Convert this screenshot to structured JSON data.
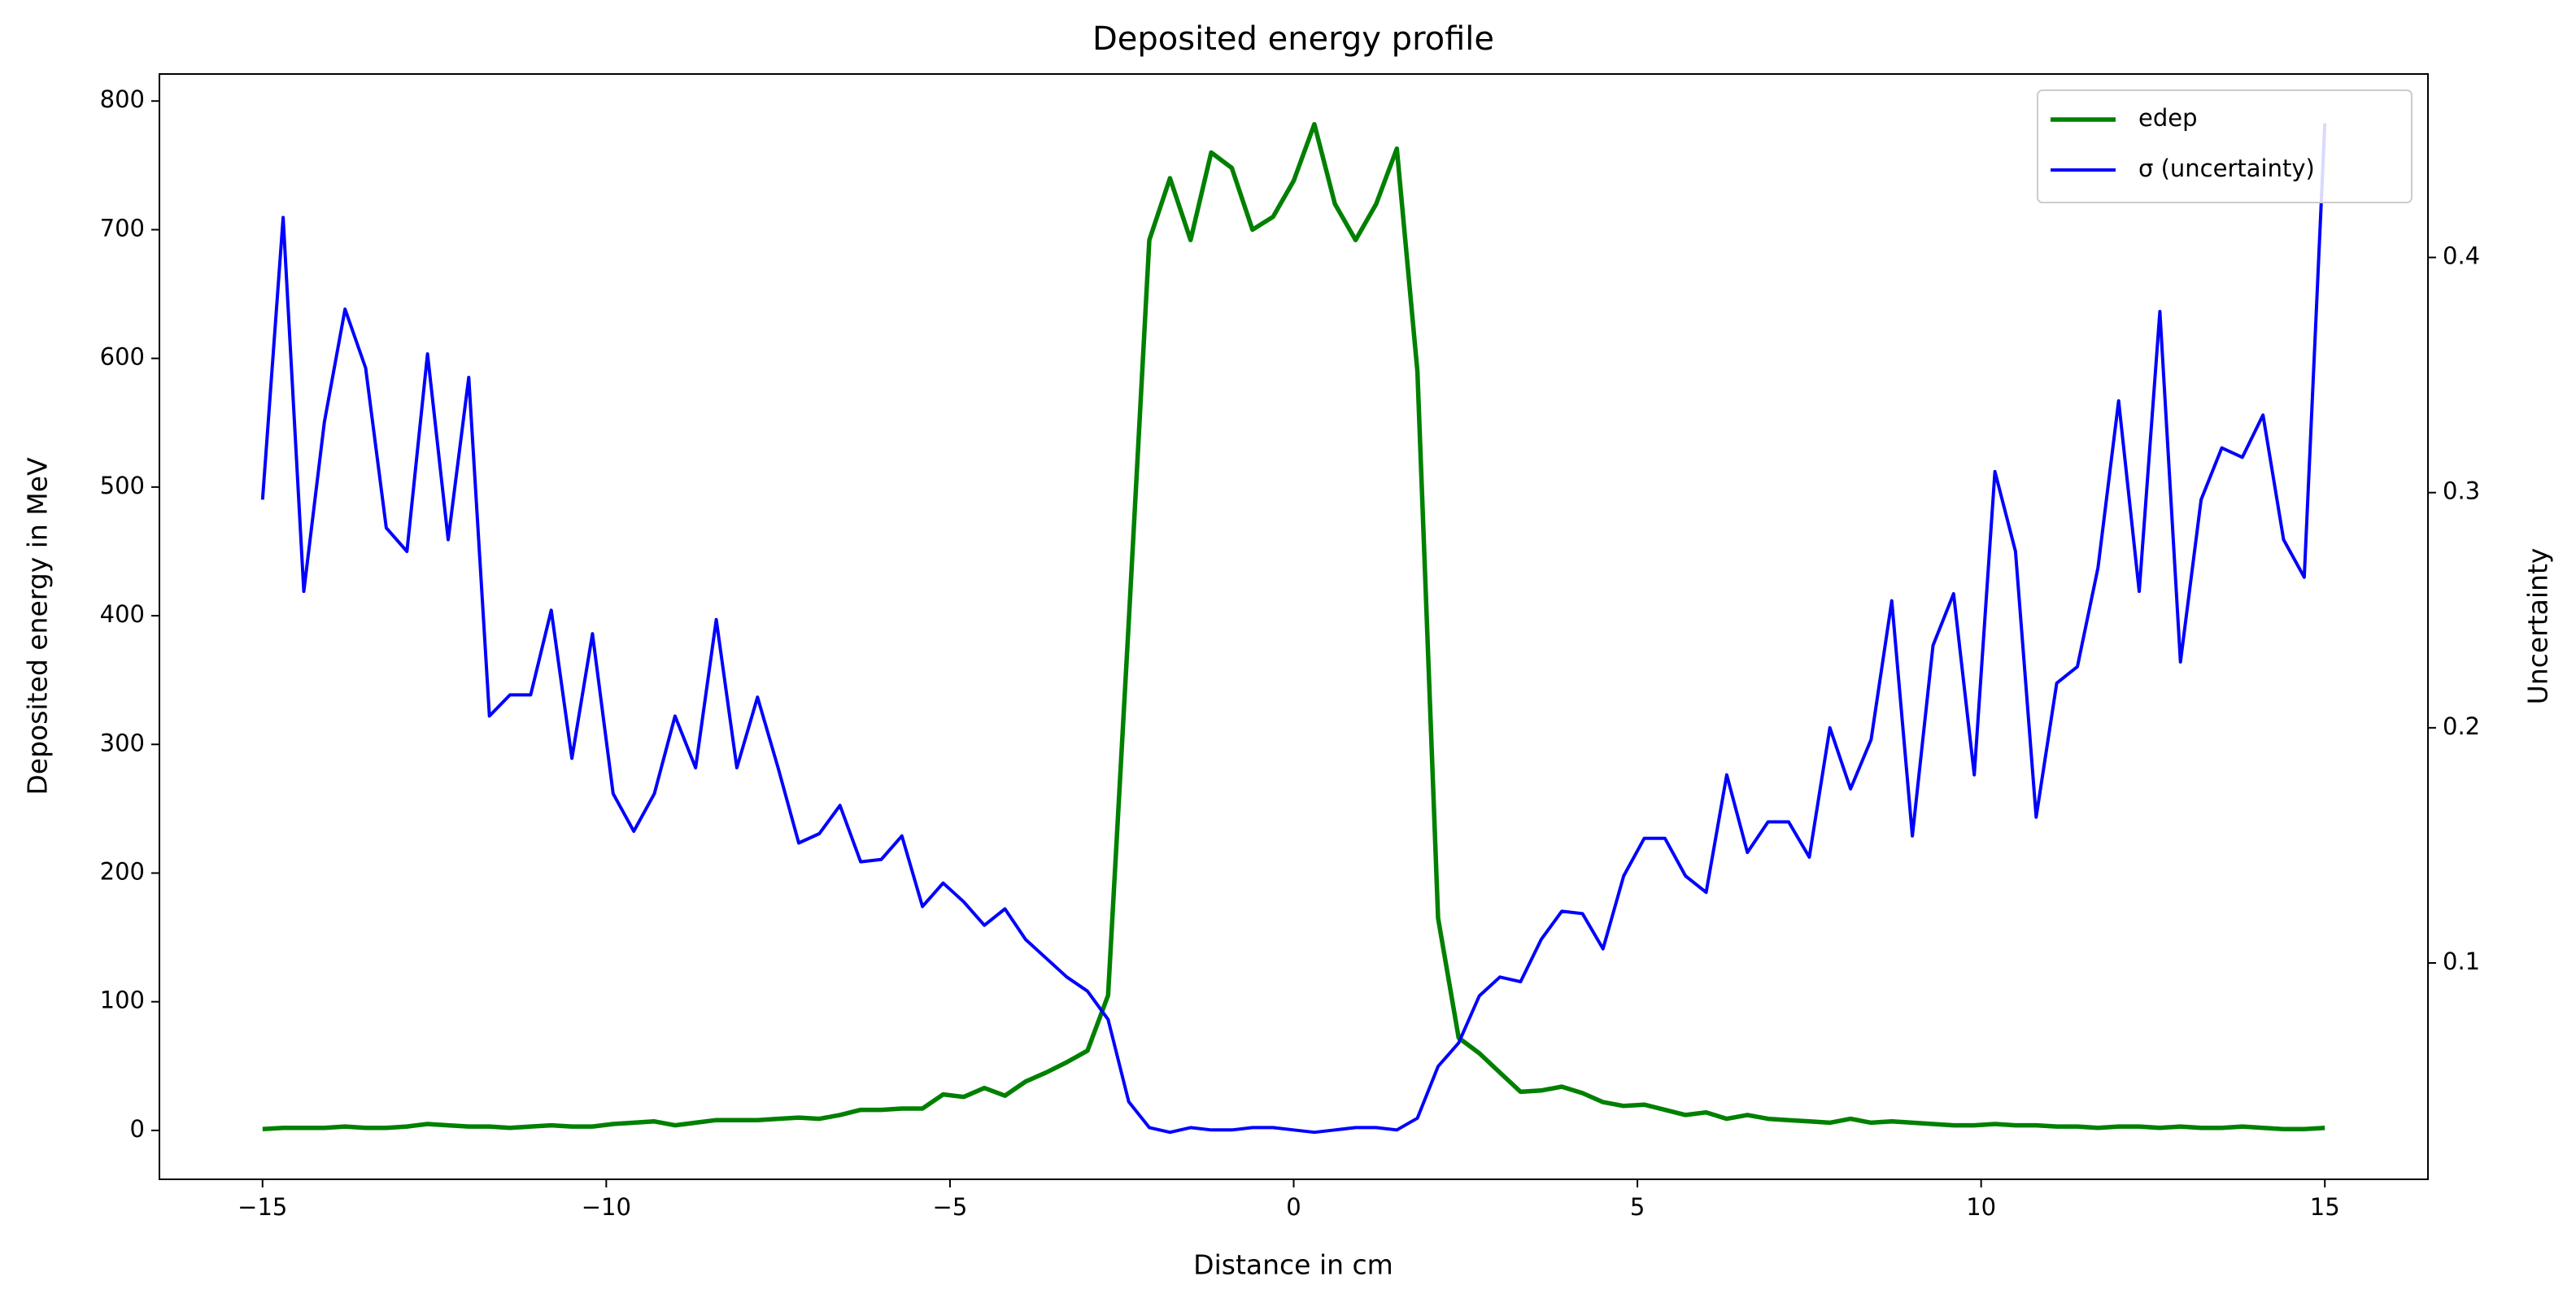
{
  "chart_data": {
    "type": "line",
    "title": "Deposited energy profile",
    "xlabel": "Distance in cm",
    "ylabel": "Deposited energy in MeV",
    "y2label": "Uncertainty",
    "x": [
      -15,
      -14.7,
      -14.4,
      -14.1,
      -13.8,
      -13.5,
      -13.2,
      -12.9,
      -12.6,
      -12.3,
      -12,
      -11.7,
      -11.4,
      -11.1,
      -10.8,
      -10.5,
      -10.2,
      -9.9,
      -9.6,
      -9.3,
      -9,
      -8.7,
      -8.4,
      -8.1,
      -7.8,
      -7.5,
      -7.2,
      -6.9,
      -6.6,
      -6.3,
      -6,
      -5.7,
      -5.4,
      -5.1,
      -4.8,
      -4.5,
      -4.2,
      -3.9,
      -3.6,
      -3.3,
      -3,
      -2.7,
      -2.4,
      -2.1,
      -1.8,
      -1.5,
      -1.2,
      -0.9,
      -0.6,
      -0.3,
      0,
      0.3,
      0.6,
      0.9,
      1.2,
      1.5,
      1.8,
      2.1,
      2.4,
      2.7,
      3,
      3.3,
      3.6,
      3.9,
      4.2,
      4.5,
      4.8,
      5.1,
      5.4,
      5.7,
      6,
      6.3,
      6.6,
      6.9,
      7.2,
      7.5,
      7.8,
      8.1,
      8.4,
      8.7,
      9,
      9.3,
      9.6,
      9.9,
      10.2,
      10.5,
      10.8,
      11.1,
      11.4,
      11.7,
      12,
      12.3,
      12.6,
      12.9,
      13.2,
      13.5,
      13.8,
      14.1,
      14.4,
      14.7,
      15
    ],
    "series": [
      {
        "name": "edep",
        "color": "#008000",
        "axis": "y",
        "values": [
          1,
          2,
          2,
          2,
          3,
          2,
          2,
          3,
          5,
          4,
          3,
          3,
          2,
          3,
          4,
          3,
          3,
          5,
          6,
          7,
          4,
          6,
          8,
          8,
          8,
          9,
          10,
          9,
          12,
          16,
          16,
          17,
          17,
          28,
          26,
          33,
          27,
          38,
          45,
          53,
          62,
          105,
          395,
          692,
          740,
          692,
          760,
          748,
          700,
          710,
          738,
          782,
          720,
          692,
          720,
          763,
          590,
          165,
          72,
          60,
          45,
          30,
          31,
          34,
          29,
          22,
          19,
          20,
          16,
          12,
          14,
          9,
          12,
          9,
          8,
          7,
          6,
          9,
          6,
          7,
          6,
          5,
          4,
          4,
          5,
          4,
          4,
          3,
          3,
          2,
          3,
          3,
          2,
          3,
          2,
          2,
          3,
          2,
          1,
          1,
          2
        ]
      },
      {
        "name": "σ (uncertainty)",
        "color": "#0000ff",
        "axis": "y2",
        "values": [
          0.297,
          0.417,
          0.258,
          0.33,
          0.378,
          0.353,
          0.285,
          0.275,
          0.359,
          0.28,
          0.349,
          0.205,
          0.214,
          0.214,
          0.25,
          0.187,
          0.24,
          0.172,
          0.156,
          0.172,
          0.205,
          0.183,
          0.246,
          0.183,
          0.213,
          0.183,
          0.151,
          0.155,
          0.167,
          0.143,
          0.144,
          0.154,
          0.124,
          0.134,
          0.126,
          0.116,
          0.123,
          0.11,
          0.102,
          0.094,
          0.088,
          0.076,
          0.041,
          0.03,
          0.028,
          0.03,
          0.029,
          0.029,
          0.03,
          0.03,
          0.029,
          0.028,
          0.029,
          0.03,
          0.03,
          0.029,
          0.034,
          0.056,
          0.066,
          0.086,
          0.094,
          0.092,
          0.11,
          0.122,
          0.121,
          0.106,
          0.137,
          0.153,
          0.153,
          0.137,
          0.13,
          0.18,
          0.147,
          0.16,
          0.16,
          0.145,
          0.2,
          0.174,
          0.195,
          0.254,
          0.154,
          0.235,
          0.257,
          0.18,
          0.309,
          0.275,
          0.162,
          0.219,
          0.226,
          0.268,
          0.339,
          0.258,
          0.377,
          0.228,
          0.297,
          0.319,
          0.315,
          0.333,
          0.28,
          0.264,
          0.457
        ]
      }
    ],
    "xlim": [
      -16.5,
      16.5
    ],
    "xticks": [
      {
        "value": -15,
        "label": "−15"
      },
      {
        "value": -10,
        "label": "−10"
      },
      {
        "value": -5,
        "label": "−5"
      },
      0,
      5,
      10,
      15
    ],
    "ylim": [
      -38,
      821
    ],
    "yticks": [
      0,
      100,
      200,
      300,
      400,
      500,
      600,
      700,
      800
    ],
    "y2lim": [
      0.008,
      0.478
    ],
    "y2ticks": [
      0.1,
      0.2,
      0.3,
      0.4
    ],
    "legend": "upper right"
  }
}
